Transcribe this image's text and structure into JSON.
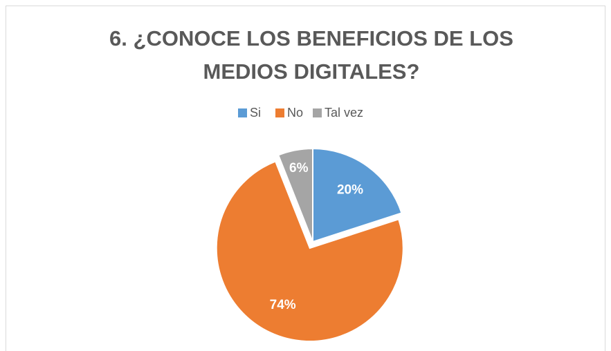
{
  "chart_data": {
    "type": "pie",
    "title": [
      "6. ¿CONOCE LOS BENEFICIOS DE LOS",
      "MEDIOS DIGITALES?"
    ],
    "categories": [
      "Si",
      "No",
      "Tal vez"
    ],
    "values": [
      20,
      74,
      6
    ],
    "value_labels": [
      "20%",
      "74%",
      "6%"
    ],
    "colors": [
      "#5b9bd5",
      "#ed7d31",
      "#a5a5a5"
    ],
    "exploded": [
      false,
      true,
      false
    ],
    "legend": "top"
  }
}
